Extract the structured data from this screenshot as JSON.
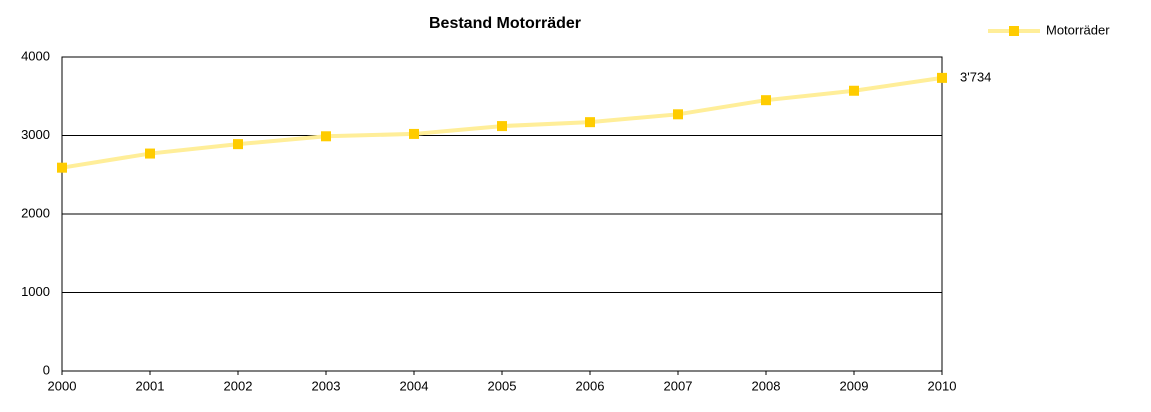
{
  "chart_data": {
    "type": "line",
    "title": "Bestand Motorräder",
    "x": [
      2000,
      2001,
      2002,
      2003,
      2004,
      2005,
      2006,
      2007,
      2008,
      2009,
      2010
    ],
    "series": [
      {
        "name": "Motorräder",
        "color": "#ffcc00",
        "line_color": "#ffee99",
        "values": [
          2590,
          2770,
          2890,
          2990,
          3020,
          3120,
          3170,
          3270,
          3450,
          3570,
          3734
        ],
        "value_labels": [
          null,
          null,
          null,
          null,
          null,
          null,
          null,
          null,
          null,
          null,
          "3'734"
        ]
      }
    ],
    "xlim": [
      2000,
      2010
    ],
    "xticks": [
      2000,
      2001,
      2002,
      2003,
      2004,
      2005,
      2006,
      2007,
      2008,
      2009,
      2010
    ],
    "ylim": [
      0,
      4000
    ],
    "yticks": [
      0,
      1000,
      2000,
      3000,
      4000
    ],
    "grid": true,
    "legend": "top-right"
  }
}
